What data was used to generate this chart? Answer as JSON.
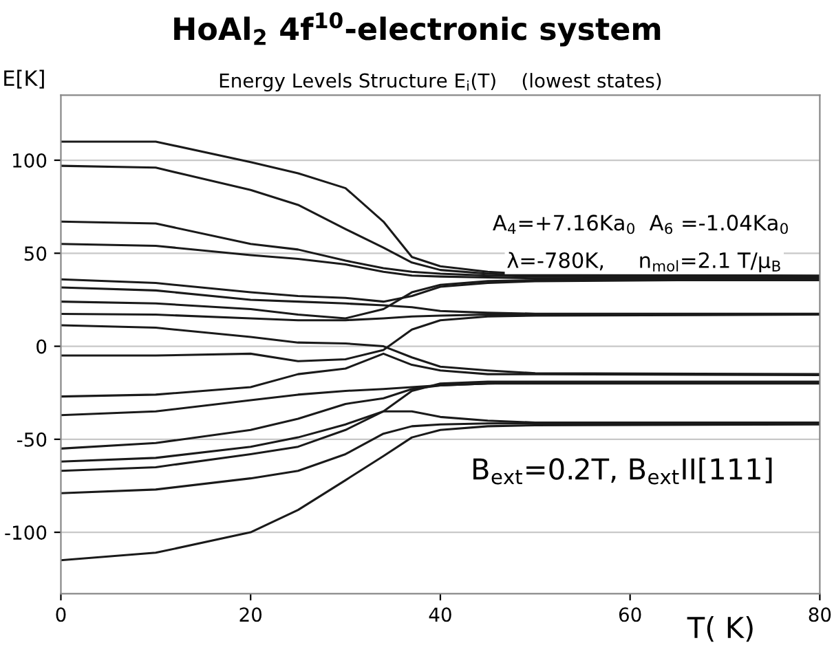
{
  "chart_data": {
    "type": "line",
    "title": "HoAl$_{2}$ 4f$^{10}$-electronic system",
    "subtitle": "Energy Levels Structure E$_{i}$(T)    (lowest states)",
    "ylabel": "E[K]",
    "xlabel": "T( K)",
    "xlim": [
      0,
      80
    ],
    "ylim": [
      -133,
      135
    ],
    "xticks": [
      0,
      20,
      40,
      60,
      80
    ],
    "yticks": [
      -100,
      -50,
      0,
      50,
      100
    ],
    "grid": "y",
    "marker": "none",
    "line_style": "solid",
    "x": [
      0,
      10,
      20,
      25,
      30,
      34,
      37,
      40,
      45,
      50,
      80
    ],
    "series": [
      {
        "color": "#1a1a1a",
        "values": [
          110,
          110,
          99,
          93,
          85,
          67,
          48,
          43,
          40,
          38.5,
          38
        ]
      },
      {
        "color": "#1a1a1a",
        "values": [
          97,
          96,
          84,
          76,
          63,
          53,
          45,
          41,
          39,
          38,
          37.5
        ]
      },
      {
        "color": "#1a1a1a",
        "values": [
          67,
          66,
          55,
          52,
          46,
          42,
          40,
          39,
          38,
          37.5,
          37
        ]
      },
      {
        "color": "#1a1a1a",
        "values": [
          55,
          54,
          49,
          47,
          44,
          40,
          38,
          37.5,
          37,
          36.5,
          36.5
        ]
      },
      {
        "color": "#1a1a1a",
        "values": [
          36,
          34,
          29,
          27,
          26,
          24,
          27,
          32,
          34,
          35,
          36
        ]
      },
      {
        "color": "#1a1a1a",
        "values": [
          31.6,
          30,
          25,
          24,
          23,
          22,
          21,
          19,
          18,
          17.5,
          17.5
        ]
      },
      {
        "color": "#1a1a1a",
        "values": [
          24,
          23,
          20,
          17,
          15,
          20,
          29,
          33,
          35,
          35.5,
          35.5
        ]
      },
      {
        "color": "#1a1a1a",
        "values": [
          17.4,
          17,
          15,
          14,
          14,
          15,
          16,
          16.5,
          17,
          17,
          17
        ]
      },
      {
        "color": "#1a1a1a",
        "values": [
          -5,
          -5,
          -4,
          -8,
          -7,
          -2,
          9,
          14,
          16,
          16.5,
          17
        ]
      },
      {
        "color": "#1a1a1a",
        "values": [
          11.3,
          10,
          5,
          2,
          1.5,
          0,
          -6,
          -11,
          -13,
          -14.5,
          -15
        ]
      },
      {
        "color": "#1a1a1a",
        "values": [
          -27,
          -26,
          -22,
          -15,
          -12,
          -4,
          -10,
          -13,
          -15,
          -15,
          -15.5
        ]
      },
      {
        "color": "#1a1a1a",
        "values": [
          -37,
          -35,
          -29,
          -26,
          -24,
          -23,
          -22,
          -21,
          -20,
          -20,
          -20
        ]
      },
      {
        "color": "#1a1a1a",
        "values": [
          -55,
          -52,
          -45,
          -39,
          -31,
          -28,
          -23,
          -21,
          -20,
          -19.5,
          -19.5
        ]
      },
      {
        "color": "#1a1a1a",
        "values": [
          -62,
          -60,
          -54,
          -49,
          -42,
          -35,
          -24,
          -20,
          -19,
          -19,
          -19
        ]
      },
      {
        "color": "#1a1a1a",
        "values": [
          -67,
          -65,
          -58,
          -54,
          -45,
          -35,
          -35,
          -38,
          -40,
          -41,
          -41
        ]
      },
      {
        "color": "#1a1a1a",
        "values": [
          -79,
          -77,
          -71,
          -67,
          -58,
          -47,
          -43,
          -42,
          -41.5,
          -41.5,
          -41.5
        ]
      },
      {
        "color": "#1a1a1a",
        "values": [
          -115,
          -111,
          -100,
          -88,
          -72,
          -59,
          -49,
          -45,
          -43,
          -42.5,
          -42
        ]
      }
    ],
    "annotations": [
      "A$_{4}$=+7.16Ka$_{0}$  A$_{6}$ =-1.04Ka$_{0}$",
      "λ=-780K,     n$_{mol}$=2.1 T/μ$_{B}$",
      "B$_{ext}$=0.2T, B$_{ext}$II[111]"
    ]
  }
}
